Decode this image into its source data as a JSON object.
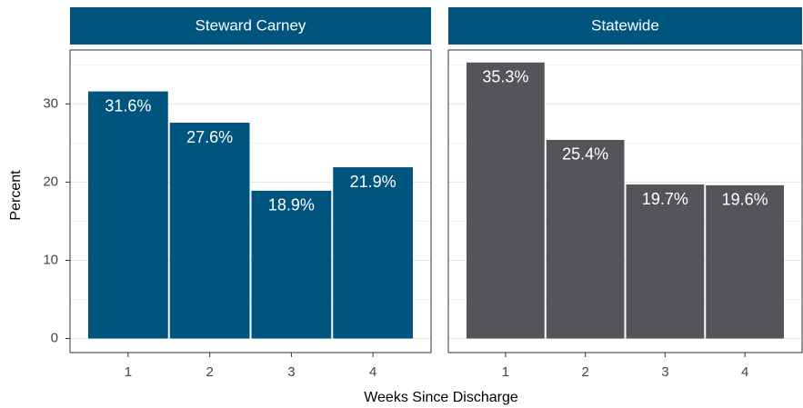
{
  "chart_data": {
    "type": "bar",
    "facet": true,
    "xlabel": "Weeks Since Discharge",
    "ylabel": "Percent",
    "categories": [
      "1",
      "2",
      "3",
      "4"
    ],
    "ylim": [
      -1.8,
      36.9
    ],
    "yticks": [
      0,
      10,
      20,
      30
    ],
    "yminor": [
      5,
      15,
      25,
      35
    ],
    "grid": true,
    "series": [
      {
        "name": "Steward Carney",
        "color": "#00557f",
        "values": [
          31.6,
          27.6,
          18.9,
          21.9
        ],
        "value_labels": [
          "31.6%",
          "27.6%",
          "18.9%",
          "21.9%"
        ]
      },
      {
        "name": "Statewide",
        "color": "#555559",
        "values": [
          35.3,
          25.4,
          19.7,
          19.6
        ],
        "value_labels": [
          "35.3%",
          "25.4%",
          "19.7%",
          "19.6%"
        ]
      }
    ]
  }
}
